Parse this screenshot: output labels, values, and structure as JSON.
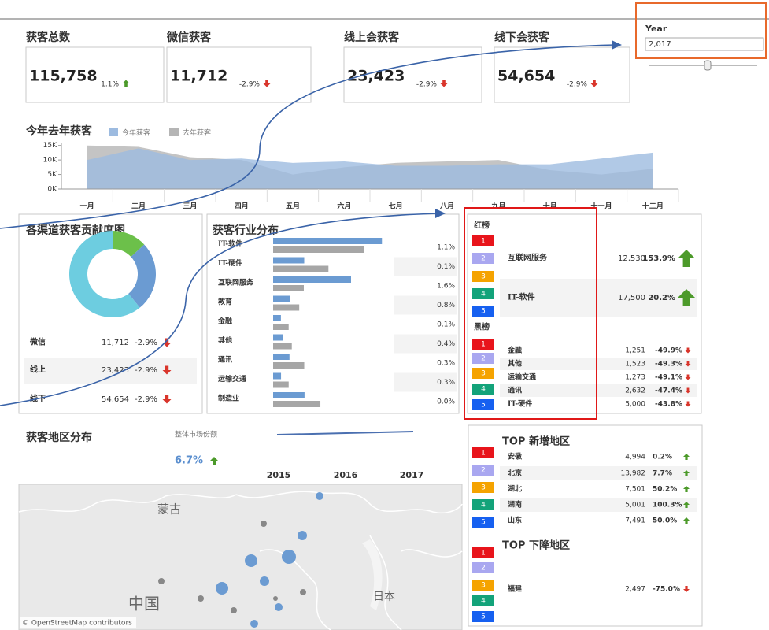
{
  "kpis": [
    {
      "title": "获客总数",
      "value": "115,758",
      "change": "1.1%"
    },
    {
      "title": "微信获客",
      "value": "11,712",
      "change": "-2.9%"
    },
    {
      "title": "线上会获客",
      "value": "23,423",
      "change": "-2.9%"
    },
    {
      "title": "线下会获客",
      "value": "54,654",
      "change": "-2.9%"
    }
  ],
  "year_filter": {
    "label": "Year",
    "value": "2,017"
  },
  "trend": {
    "type": "area",
    "title": "今年去年获客",
    "categories": [
      "一月",
      "二月",
      "三月",
      "四月",
      "五月",
      "六月",
      "七月",
      "八月",
      "九月",
      "十月",
      "十一月",
      "十二月"
    ],
    "ylim": [
      0,
      16000
    ],
    "yticks": [
      {
        "value": 15000,
        "label": "15K"
      },
      {
        "value": 10000,
        "label": "10K"
      },
      {
        "value": 5000,
        "label": "5K"
      },
      {
        "value": 0,
        "label": "0K"
      }
    ],
    "series": [
      {
        "name": "今年获客",
        "color": "#9dbbe0",
        "values": [
          10000,
          14000,
          10000,
          10500,
          9000,
          9500,
          8000,
          8000,
          8500,
          8500,
          10500,
          12500
        ]
      },
      {
        "name": "去年获客",
        "color": "#b5b5b5",
        "values": [
          15000,
          14500,
          11000,
          10000,
          5000,
          7500,
          9000,
          9500,
          10000,
          6500,
          5000,
          7000
        ]
      }
    ]
  },
  "channels": {
    "type": "donut",
    "title": "各渠道获客贡献度图",
    "categories": [
      "微信",
      "线上",
      "线下"
    ],
    "values": [
      11712,
      23423,
      54654
    ],
    "value_labels": [
      "11,712",
      "23,423",
      "54,654"
    ],
    "changes": [
      "-2.9%",
      "-2.9%",
      "-2.9%"
    ],
    "colors": [
      "#6cc04a",
      "#6b9bd2",
      "#6dcde0"
    ]
  },
  "industries": {
    "type": "bar",
    "title": "获客行业分布",
    "categories": [
      "IT-软件",
      "IT-硬件",
      "互联网服务",
      "教育",
      "金融",
      "其他",
      "通讯",
      "运输交通",
      "制造业"
    ],
    "xlim": [
      0,
      20000
    ],
    "series": [
      {
        "color": "#6b9bd2",
        "values": [
          17500,
          5000,
          12530,
          2660,
          1251,
          1523,
          2632,
          1273,
          5050
        ]
      },
      {
        "color": "#a6a6a6",
        "values": [
          14559,
          8897,
          4935,
          4200,
          2497,
          3004,
          5004,
          2501,
          7600
        ]
      }
    ],
    "changes": [
      "1.1%",
      "0.1%",
      "1.6%",
      "0.8%",
      "0.1%",
      "0.4%",
      "0.3%",
      "0.3%",
      "0.0%"
    ]
  },
  "rank_labels": [
    "1",
    "2",
    "3",
    "4",
    "5"
  ],
  "rank_colors": [
    "#e8141b",
    "#a9a7f0",
    "#f5a300",
    "#13a37a",
    "#1660f0"
  ],
  "rankings": {
    "red": {
      "title": "红榜",
      "rows": [
        {
          "name": "互联网服务",
          "value": "12,530",
          "change": "153.9%"
        },
        {
          "name": "IT-软件",
          "value": "17,500",
          "change": "20.2%"
        }
      ]
    },
    "black": {
      "title": "黑榜",
      "rows": [
        {
          "name": "金融",
          "value": "1,251",
          "change": "-49.9%"
        },
        {
          "name": "其他",
          "value": "1,523",
          "change": "-49.3%"
        },
        {
          "name": "运输交通",
          "value": "1,273",
          "change": "-49.1%"
        },
        {
          "name": "通讯",
          "value": "2,632",
          "change": "-47.4%"
        },
        {
          "name": "IT-硬件",
          "value": "5,000",
          "change": "-43.8%"
        }
      ]
    }
  },
  "region": {
    "title": "获客地区分布",
    "share_label": "整体市场份额",
    "share_value": "6.7%",
    "years": [
      "2015",
      "2016",
      "2017"
    ],
    "map_labels": [
      "蒙古",
      "中国",
      "日本"
    ],
    "attribution": "© OpenStreetMap contributors"
  },
  "top_regions": {
    "increase": {
      "title": "TOP 新增地区",
      "rows": [
        {
          "name": "安徽",
          "value": "4,994",
          "change": "0.2%"
        },
        {
          "name": "北京",
          "value": "13,982",
          "change": "7.7%"
        },
        {
          "name": "湖北",
          "value": "7,501",
          "change": "50.2%"
        },
        {
          "name": "湖南",
          "value": "5,001",
          "change": "100.3%"
        },
        {
          "name": "山东",
          "value": "7,491",
          "change": "50.0%"
        }
      ]
    },
    "decrease": {
      "title": "TOP 下降地区",
      "rows": [
        {
          "name": "福建",
          "value": "2,497",
          "change": "-75.0%"
        }
      ]
    }
  }
}
